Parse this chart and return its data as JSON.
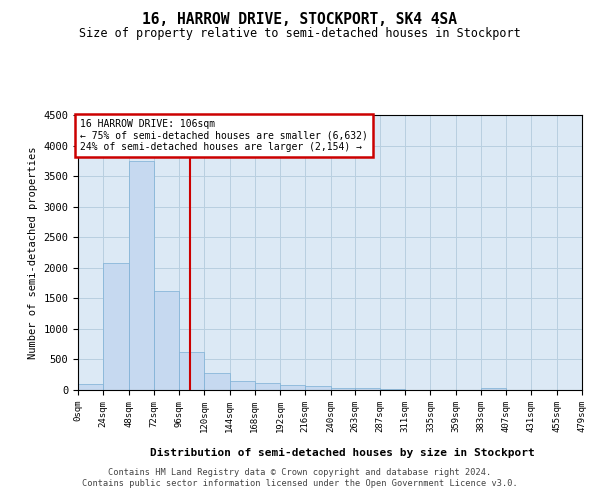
{
  "title": "16, HARROW DRIVE, STOCKPORT, SK4 4SA",
  "subtitle": "Size of property relative to semi-detached houses in Stockport",
  "xlabel": "Distribution of semi-detached houses by size in Stockport",
  "ylabel": "Number of semi-detached properties",
  "property_size": 106,
  "annotation_line1": "16 HARROW DRIVE: 106sqm",
  "annotation_line2": "← 75% of semi-detached houses are smaller (6,632)",
  "annotation_line3": "24% of semi-detached houses are larger (2,154) →",
  "bar_color": "#c6d9f0",
  "bar_edge_color": "#7bafd4",
  "vline_color": "#cc0000",
  "box_edge_color": "#cc0000",
  "background_color": "#ffffff",
  "plot_bg_color": "#dce9f5",
  "grid_color": "#b8cfe0",
  "footer_line1": "Contains HM Land Registry data © Crown copyright and database right 2024.",
  "footer_line2": "Contains public sector information licensed under the Open Government Licence v3.0.",
  "bins": [
    0,
    24,
    48,
    72,
    96,
    120,
    144,
    168,
    192,
    216,
    240,
    263,
    287,
    311,
    335,
    359,
    383,
    407,
    431,
    455,
    479
  ],
  "bin_labels": [
    "0sqm",
    "24sqm",
    "48sqm",
    "72sqm",
    "96sqm",
    "120sqm",
    "144sqm",
    "168sqm",
    "192sqm",
    "216sqm",
    "240sqm",
    "263sqm",
    "287sqm",
    "311sqm",
    "335sqm",
    "359sqm",
    "383sqm",
    "407sqm",
    "431sqm",
    "455sqm",
    "479sqm"
  ],
  "counts": [
    100,
    2075,
    3750,
    1620,
    630,
    280,
    140,
    110,
    85,
    65,
    40,
    25,
    15,
    8,
    5,
    0,
    40,
    5,
    0,
    0
  ],
  "ylim": [
    0,
    4500
  ],
  "yticks": [
    0,
    500,
    1000,
    1500,
    2000,
    2500,
    3000,
    3500,
    4000,
    4500
  ]
}
